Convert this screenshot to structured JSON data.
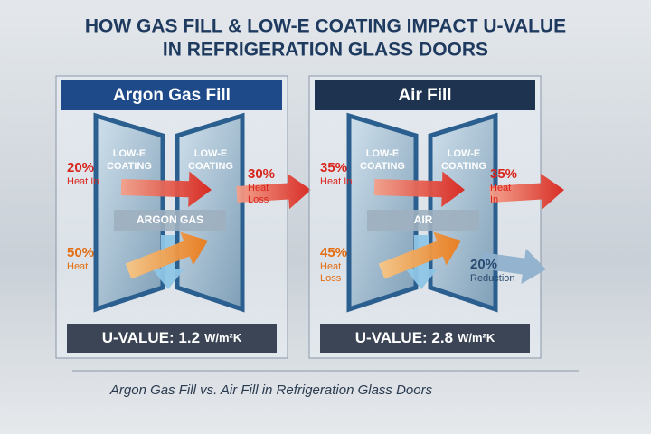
{
  "header": {
    "title_lines": [
      "HOW GAS FILL & LOW-E COATING IMPACT U-VALUE",
      "IN REFRIGERATION GLASS DOORS"
    ]
  },
  "panels": [
    {
      "title": "Argon Gas Fill",
      "coating": [
        "LOW-E",
        "COATING"
      ],
      "gap_label": "ARGON GAS",
      "arrows": [
        {
          "percent": "20%",
          "lines": [
            "Heat In"
          ]
        },
        {
          "percent": "30%",
          "lines": [
            "Heat",
            "Loss"
          ]
        },
        {
          "percent": "50%",
          "lines": [
            "Heat"
          ]
        }
      ],
      "u_value": {
        "label": "U-VALUE: 1.2",
        "unit": "W/m²K"
      }
    },
    {
      "title": "Air Fill",
      "coating": [
        "LOW-E",
        "COATING"
      ],
      "gap_label": "AIR",
      "arrows": [
        {
          "percent": "35%",
          "lines": [
            "Heat In"
          ]
        },
        {
          "percent": "35%",
          "lines": [
            "Heat",
            "In"
          ]
        },
        {
          "percent": "45%",
          "lines": [
            "Heat",
            "Loss"
          ]
        },
        {
          "percent": "20%",
          "lines": [
            "Reduction"
          ]
        }
      ],
      "u_value": {
        "label": "U-VALUE: 2.8",
        "unit": "W/m²K"
      }
    }
  ],
  "caption": "Argon Gas Fill vs. Air Fill in Refrigeration Glass Doors"
}
